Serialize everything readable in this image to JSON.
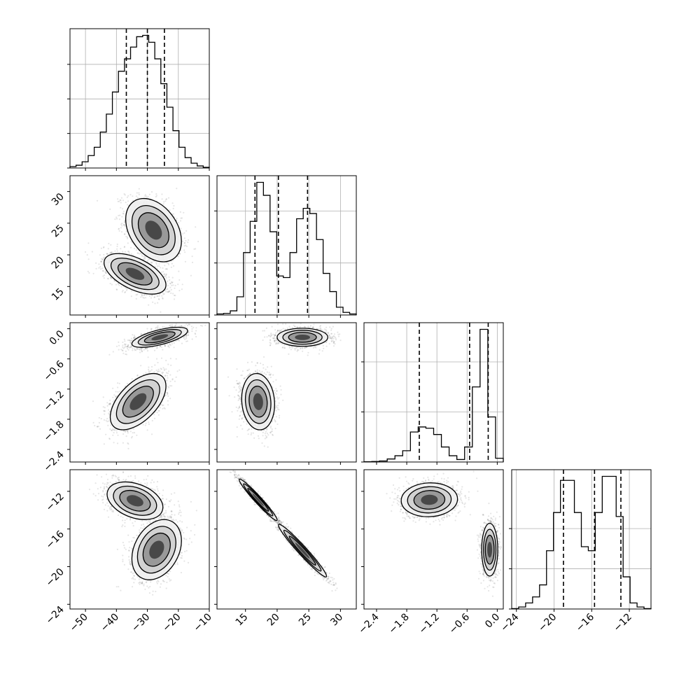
{
  "chart_data": {
    "type": "corner",
    "grid": true,
    "colors": {
      "line": "#000000",
      "grid": "#b0b0b0",
      "scatter": "#000000",
      "background": "#ffffff"
    },
    "parameters": [
      {
        "range": [
          -55,
          -10
        ],
        "quantiles": [
          -36.8,
          -30.0,
          -24.5
        ],
        "ticks": [
          -50,
          -40,
          -30,
          -20,
          -10
        ],
        "tick_labels": [
          "−50",
          "−40",
          "−30",
          "−20",
          "−10"
        ]
      },
      {
        "range": [
          10.5,
          32.5
        ],
        "quantiles": [
          16.5,
          20.2,
          24.8
        ],
        "ticks": [
          15,
          20,
          25,
          30
        ],
        "tick_labels": [
          "15",
          "20",
          "25",
          "30"
        ]
      },
      {
        "range": [
          -2.65,
          0.12
        ],
        "quantiles": [
          -1.55,
          -0.55,
          -0.18
        ],
        "ticks": [
          -2.4,
          -1.8,
          -1.2,
          -0.6,
          0.0
        ],
        "tick_labels": [
          "−2.4",
          "−1.8",
          "−1.2",
          "−0.6",
          "0.0"
        ]
      },
      {
        "range": [
          -24.5,
          -9.7
        ],
        "quantiles": [
          -19.0,
          -15.7,
          -12.9
        ],
        "ticks": [
          -24,
          -20,
          -16,
          -12
        ],
        "tick_labels": [
          "−24",
          "−20",
          "−16",
          "−12"
        ]
      }
    ],
    "histograms": [
      {
        "param": 0,
        "counts": [
          2,
          4,
          9,
          18,
          30,
          52,
          78,
          110,
          140,
          158,
          175,
          190,
          192,
          182,
          158,
          122,
          88,
          54,
          30,
          15,
          7,
          3,
          1
        ],
        "hist_ticks": [
          0,
          50,
          100,
          150
        ]
      },
      {
        "param": 1,
        "counts": [
          2,
          3,
          8,
          35,
          120,
          180,
          255,
          230,
          160,
          75,
          72,
          120,
          185,
          205,
          195,
          145,
          80,
          45,
          15,
          5,
          2
        ],
        "hist_ticks": [
          0,
          100,
          200
        ]
      },
      {
        "param": 2,
        "counts": [
          1,
          2,
          4,
          12,
          25,
          45,
          120,
          140,
          135,
          110,
          60,
          25,
          10,
          60,
          300,
          530,
          180,
          15
        ],
        "hist_ticks": [
          0,
          200,
          400
        ]
      },
      {
        "param": 3,
        "counts": [
          1,
          5,
          15,
          30,
          60,
          145,
          240,
          320,
          320,
          240,
          155,
          145,
          240,
          330,
          330,
          230,
          80,
          15,
          5,
          1
        ],
        "hist_ticks": [
          0,
          100,
          200
        ]
      }
    ],
    "pairs": [
      {
        "x": 0,
        "y": 1,
        "clusters": [
          {
            "cx": -28,
            "cy": 23.9,
            "sx": 4.5,
            "sy": 2.5,
            "rho": -0.35,
            "n": 1500
          },
          {
            "cx": -34,
            "cy": 17.0,
            "sx": 5.0,
            "sy": 1.6,
            "rho": -0.55,
            "n": 1500
          }
        ]
      },
      {
        "x": 0,
        "y": 2,
        "clusters": [
          {
            "cx": -26,
            "cy": -0.17,
            "sx": 4.5,
            "sy": 0.1,
            "rho": 0.65,
            "n": 1500
          },
          {
            "cx": -33,
            "cy": -1.45,
            "sx": 4.5,
            "sy": 0.28,
            "rho": 0.55,
            "n": 1500
          }
        ]
      },
      {
        "x": 0,
        "y": 3,
        "clusters": [
          {
            "cx": -34,
            "cy": -13.0,
            "sx": 4.5,
            "sy": 1.0,
            "rho": -0.35,
            "n": 1500
          },
          {
            "cx": -27,
            "cy": -18.2,
            "sx": 4.0,
            "sy": 1.6,
            "rho": 0.3,
            "n": 1500
          }
        ]
      },
      {
        "x": 1,
        "y": 2,
        "clusters": [
          {
            "cx": 24.0,
            "cy": -0.17,
            "sx": 2.0,
            "sy": 0.09,
            "rho": 0.0,
            "n": 1500
          },
          {
            "cx": 17.0,
            "cy": -1.45,
            "sx": 1.3,
            "sy": 0.28,
            "rho": -0.1,
            "n": 1500
          }
        ]
      },
      {
        "x": 1,
        "y": 3,
        "clusters": [
          {
            "cx": 17.0,
            "cy": -12.9,
            "sx": 1.5,
            "sy": 1.1,
            "rho": -0.97,
            "n": 1500
          },
          {
            "cx": 24.0,
            "cy": -18.3,
            "sx": 1.9,
            "sy": 1.4,
            "rho": -0.97,
            "n": 1500
          }
        ]
      },
      {
        "x": 2,
        "y": 3,
        "clusters": [
          {
            "cx": -1.35,
            "cy": -12.9,
            "sx": 0.28,
            "sy": 0.9,
            "rho": 0.05,
            "n": 1500
          },
          {
            "cx": -0.15,
            "cy": -18.2,
            "sx": 0.08,
            "sy": 1.4,
            "rho": 0.0,
            "n": 1500
          }
        ]
      }
    ]
  }
}
